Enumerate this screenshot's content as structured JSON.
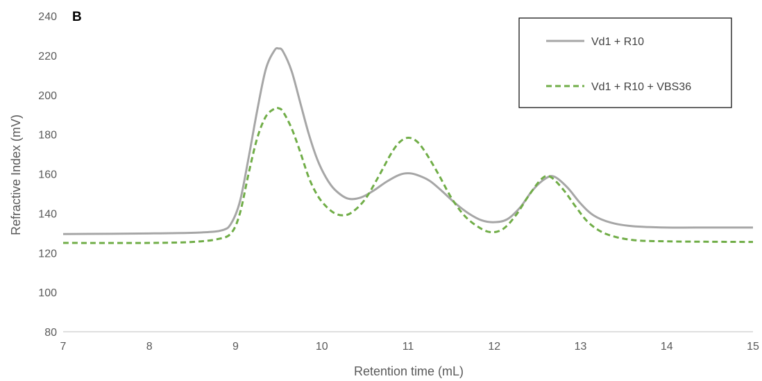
{
  "chart_data": {
    "type": "line",
    "panel_label": "B",
    "xlabel": "Retention time (mL)",
    "ylabel": "Refractive Index  (mV)",
    "xlim": [
      7,
      15
    ],
    "ylim": [
      80,
      240
    ],
    "x_ticks": [
      "7",
      "8",
      "9",
      "10",
      "11",
      "12",
      "13",
      "14",
      "15"
    ],
    "y_ticks": [
      "80",
      "100",
      "120",
      "140",
      "160",
      "180",
      "200",
      "220",
      "240"
    ],
    "grid": false,
    "legend_position": "top-right",
    "series": [
      {
        "name": "Vd1 + R10",
        "color": "#a6a6a6",
        "style": "solid",
        "x": [
          7.0,
          8.0,
          8.6,
          8.85,
          8.95,
          9.05,
          9.15,
          9.25,
          9.35,
          9.45,
          9.5,
          9.55,
          9.65,
          9.75,
          9.85,
          9.95,
          10.05,
          10.15,
          10.3,
          10.45,
          10.6,
          10.75,
          10.9,
          11.0,
          11.1,
          11.25,
          11.4,
          11.55,
          11.7,
          11.85,
          12.0,
          12.15,
          12.3,
          12.45,
          12.6,
          12.7,
          12.85,
          13.0,
          13.15,
          13.35,
          13.6,
          14.0,
          14.5,
          15.0
        ],
        "y": [
          129.5,
          129.8,
          130.3,
          131.5,
          135,
          146,
          168,
          192,
          213,
          222.5,
          223.5,
          222,
          212,
          196,
          180,
          167,
          158,
          152,
          147.5,
          148,
          151.5,
          156,
          159.5,
          160.3,
          159.5,
          156.5,
          151,
          145,
          140,
          136.5,
          135.5,
          137,
          143,
          152,
          157.8,
          158.5,
          153,
          145,
          139,
          135.3,
          133.5,
          132.8,
          132.8,
          132.8
        ]
      },
      {
        "name": "Vd1 + R10 + VBS36",
        "color": "#70ad47",
        "style": "dashed",
        "x": [
          7.0,
          8.0,
          8.5,
          8.8,
          8.95,
          9.05,
          9.15,
          9.25,
          9.35,
          9.45,
          9.5,
          9.55,
          9.65,
          9.75,
          9.85,
          9.95,
          10.05,
          10.15,
          10.25,
          10.35,
          10.5,
          10.65,
          10.8,
          10.9,
          11.0,
          11.1,
          11.2,
          11.35,
          11.5,
          11.65,
          11.8,
          11.95,
          12.1,
          12.25,
          12.4,
          12.55,
          12.65,
          12.8,
          12.95,
          13.1,
          13.3,
          13.6,
          14.0,
          14.5,
          15.0
        ],
        "y": [
          125,
          125,
          125.5,
          127,
          130,
          140,
          160,
          178,
          189,
          193,
          193.2,
          191.5,
          183,
          171,
          158,
          149,
          143.5,
          140,
          139,
          140.5,
          147,
          158,
          170,
          176,
          178.3,
          176.5,
          171,
          160,
          148,
          139,
          133.5,
          130.5,
          132,
          139,
          149,
          157.5,
          158.5,
          152,
          143,
          135,
          129.5,
          126.5,
          125.8,
          125.6,
          125.5
        ]
      }
    ]
  }
}
